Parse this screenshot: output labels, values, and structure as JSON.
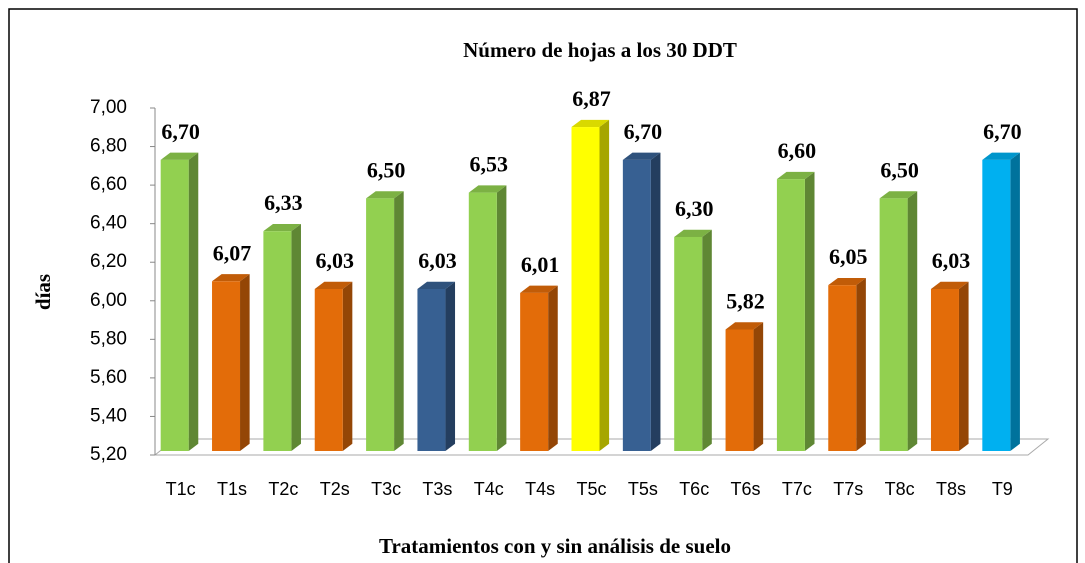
{
  "chart_data": {
    "type": "bar",
    "title": "Número de hojas a los 30 DDT",
    "xlabel": "Tratamientos con y sin análisis de suelo",
    "ylabel": "días",
    "categories": [
      "T1c",
      "T1s",
      "T2c",
      "T2s",
      "T3c",
      "T3s",
      "T4c",
      "T4s",
      "T5c",
      "T5s",
      "T6c",
      "T6s",
      "T7c",
      "T7s",
      "T8c",
      "T8s",
      "T9"
    ],
    "values": [
      6.7,
      6.07,
      6.33,
      6.03,
      6.5,
      6.03,
      6.53,
      6.01,
      6.87,
      6.7,
      6.3,
      5.82,
      6.6,
      6.05,
      6.5,
      6.03,
      6.7
    ],
    "value_labels": [
      "6,70",
      "6,07",
      "6,33",
      "6,03",
      "6,50",
      "6,03",
      "6,53",
      "6,01",
      "6,87",
      "6,70",
      "6,30",
      "5,82",
      "6,60",
      "6,05",
      "6,50",
      "6,03",
      "6,70"
    ],
    "colors": [
      "#92d050",
      "#e36c09",
      "#92d050",
      "#e36c09",
      "#92d050",
      "#376092",
      "#92d050",
      "#e36c09",
      "#ffff00",
      "#376092",
      "#92d050",
      "#e36c09",
      "#92d050",
      "#e36c09",
      "#92d050",
      "#e36c09",
      "#00b0f0"
    ],
    "ylim": [
      5.2,
      7.0
    ],
    "yticks": [
      {
        "value": 5.2,
        "label": "5,20"
      },
      {
        "value": 5.4,
        "label": "5,40"
      },
      {
        "value": 5.6,
        "label": "5,60"
      },
      {
        "value": 5.8,
        "label": "5,80"
      },
      {
        "value": 6.0,
        "label": "6,00"
      },
      {
        "value": 6.2,
        "label": "6,20"
      },
      {
        "value": 6.4,
        "label": "6,40"
      },
      {
        "value": 6.6,
        "label": "6,60"
      },
      {
        "value": 6.8,
        "label": "6,80"
      },
      {
        "value": 7.0,
        "label": "7,00"
      }
    ]
  }
}
